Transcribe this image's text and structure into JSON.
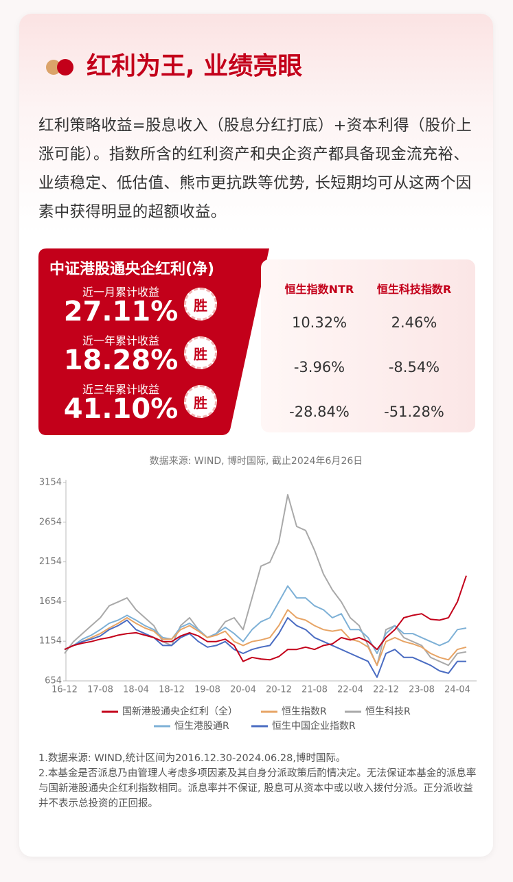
{
  "header": {
    "title": "红利为王, 业绩亮眼"
  },
  "intro": "红利策略收益=股息收入（股息分红打底）+资本利得（股价上涨可能）。指数所含的红利资产和央企资产都具备现金流充裕、业绩稳定、低估值、熊市更抗跌等优势, 长短期均可从这两个因素中获得明显的超额收益。",
  "comparison": {
    "fund_title": "中证港股通央企红利(净)",
    "columns": [
      "恒生指数NTR",
      "恒生科技指数R"
    ],
    "rows": [
      {
        "label": "近一月累计收益",
        "value": "27.11%",
        "badge": "胜",
        "others": [
          "10.32%",
          "2.46%"
        ]
      },
      {
        "label": "近一年累计收益",
        "value": "18.28%",
        "badge": "胜",
        "others": [
          "-3.96%",
          "-8.54%"
        ]
      },
      {
        "label": "近三年累计收益",
        "value": "41.10%",
        "badge": "胜",
        "others": [
          "-28.84%",
          "-51.28%"
        ]
      }
    ]
  },
  "chart_data": {
    "type": "line",
    "subtitle": "数据来源: WIND, 博时国际, 截止2024年6月26日",
    "categories": [
      "16-12",
      null,
      null,
      null,
      "17-08",
      null,
      null,
      null,
      "18-04",
      null,
      null,
      null,
      "18-12",
      null,
      null,
      null,
      "19-08",
      null,
      null,
      null,
      "20-04",
      null,
      null,
      null,
      "20-12",
      null,
      null,
      null,
      "21-08",
      null,
      null,
      null,
      "22-04",
      null,
      null,
      null,
      "22-12",
      null,
      null,
      null,
      "23-08",
      null,
      null,
      null,
      "24-04",
      null
    ],
    "ylim": [
      654,
      3154
    ],
    "yticks": [
      654,
      1154,
      1654,
      2154,
      2654,
      3154
    ],
    "series": [
      {
        "name": "国新港股通央企红利（全）",
        "color": "#c3001a",
        "values": [
          1050,
          1100,
          1130,
          1150,
          1180,
          1200,
          1230,
          1250,
          1260,
          1230,
          1200,
          1150,
          1150,
          1220,
          1260,
          1220,
          1150,
          1150,
          1180,
          1100,
          900,
          950,
          930,
          920,
          960,
          1050,
          1050,
          1080,
          1050,
          1100,
          1120,
          1200,
          1170,
          1200,
          1150,
          1050,
          1200,
          1300,
          1450,
          1480,
          1500,
          1430,
          1420,
          1450,
          1650,
          1980
        ]
      },
      {
        "name": "恒生指数R",
        "color": "#e7a465",
        "values": [
          1050,
          1100,
          1150,
          1200,
          1250,
          1320,
          1380,
          1450,
          1380,
          1320,
          1280,
          1180,
          1180,
          1300,
          1350,
          1280,
          1200,
          1230,
          1280,
          1150,
          1100,
          1150,
          1170,
          1200,
          1350,
          1550,
          1450,
          1420,
          1350,
          1300,
          1280,
          1300,
          1180,
          1150,
          1080,
          850,
          1150,
          1200,
          1150,
          1120,
          1080,
          1000,
          950,
          920,
          1050,
          1080
        ]
      },
      {
        "name": "恒生科技R",
        "color": "#a9a9a9",
        "values": [
          1000,
          1150,
          1250,
          1350,
          1450,
          1600,
          1650,
          1700,
          1550,
          1450,
          1350,
          1150,
          1100,
          1350,
          1450,
          1300,
          1200,
          1250,
          1400,
          1450,
          1300,
          1700,
          2100,
          2150,
          2400,
          3000,
          2600,
          2550,
          2300,
          2000,
          1800,
          1650,
          1450,
          1350,
          1100,
          850,
          1300,
          1350,
          1200,
          1150,
          1100,
          950,
          900,
          850,
          1000,
          1020
        ]
      },
      {
        "name": "恒生港股通R",
        "color": "#7db0d6",
        "values": [
          1050,
          1100,
          1180,
          1230,
          1300,
          1380,
          1420,
          1480,
          1420,
          1350,
          1300,
          1200,
          1180,
          1330,
          1380,
          1300,
          1200,
          1250,
          1330,
          1250,
          1150,
          1300,
          1400,
          1450,
          1650,
          1850,
          1700,
          1700,
          1600,
          1550,
          1450,
          1500,
          1300,
          1300,
          1200,
          1000,
          1250,
          1350,
          1250,
          1250,
          1200,
          1150,
          1100,
          1150,
          1300,
          1320
        ]
      },
      {
        "name": "恒生中国企业指数R",
        "color": "#4a6cc2",
        "values": [
          1050,
          1100,
          1150,
          1180,
          1220,
          1300,
          1350,
          1420,
          1300,
          1250,
          1200,
          1100,
          1100,
          1200,
          1250,
          1150,
          1080,
          1100,
          1150,
          1050,
          1000,
          1050,
          1080,
          1100,
          1250,
          1450,
          1350,
          1300,
          1200,
          1150,
          1100,
          1050,
          1000,
          950,
          900,
          700,
          1000,
          1050,
          950,
          950,
          900,
          850,
          780,
          750,
          900,
          900
        ]
      }
    ]
  },
  "footnotes": [
    "1.数据来源: WIND,统计区间为2016.12.30-2024.06.28,博时国际。",
    "2.本基金是否派息乃由管理人考虑多项因素及其自身分派政策后酌情决定。无法保证本基金的派息率与国新港股通央企红利指数相同。派息率并不保证, 股息可从资本中或以收入拨付分派。正分派收益并不表示总投资的正回报。"
  ]
}
